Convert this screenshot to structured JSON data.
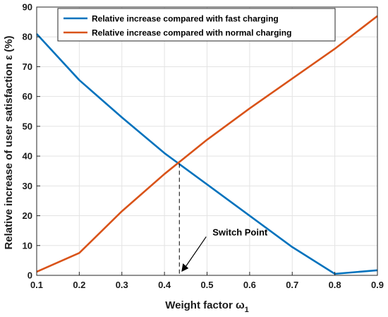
{
  "chart_data": {
    "type": "line",
    "xlabel": "Weight factor ω",
    "xlabel_sub": "1",
    "ylabel": "Relative increase of user satisfaction ε (%)",
    "xlim": [
      0.1,
      0.9
    ],
    "ylim": [
      0,
      90
    ],
    "x_ticks": [
      0.1,
      0.2,
      0.3,
      0.4,
      0.5,
      0.6,
      0.7,
      0.8,
      0.9
    ],
    "y_ticks": [
      0,
      10,
      20,
      30,
      40,
      50,
      60,
      70,
      80,
      90
    ],
    "grid": true,
    "legend_position": "top",
    "series": [
      {
        "name": "Relative increase compared with fast charging",
        "color": "#0072BD",
        "x": [
          0.1,
          0.2,
          0.3,
          0.4,
          0.5,
          0.6,
          0.7,
          0.8,
          0.9
        ],
        "y": [
          81,
          65.5,
          53,
          41,
          30.5,
          20,
          9.5,
          0.5,
          1.7
        ]
      },
      {
        "name": "Relative increase compared with normal charging",
        "color": "#D95319",
        "x": [
          0.1,
          0.2,
          0.3,
          0.4,
          0.5,
          0.6,
          0.7,
          0.8,
          0.9
        ],
        "y": [
          1.2,
          7.5,
          21.5,
          34,
          45.5,
          56,
          66,
          76,
          87
        ]
      }
    ],
    "annotations": [
      {
        "text": "Switch Point",
        "point": [
          0.435,
          37.5
        ]
      }
    ]
  }
}
